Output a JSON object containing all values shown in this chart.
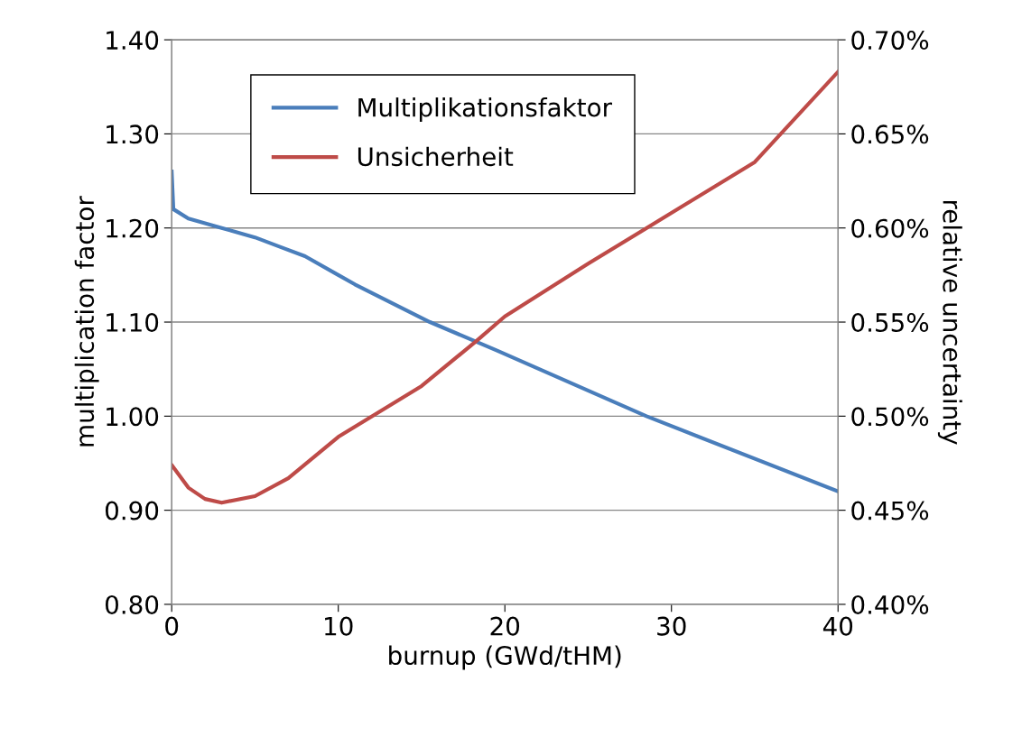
{
  "chart_data": {
    "type": "line",
    "xlabel": "burnup (GWd/tHM)",
    "ylabel": "multiplication factor",
    "y2label": "relative uncertainty",
    "xlim": [
      0,
      40
    ],
    "xticks": [
      0,
      10,
      20,
      30,
      40
    ],
    "ylim": [
      0.8,
      1.4
    ],
    "yticks": [
      {
        "value": 0.8,
        "label": "0.80"
      },
      {
        "value": 0.9,
        "label": "0.90"
      },
      {
        "value": 1.0,
        "label": "1.00"
      },
      {
        "value": 1.1,
        "label": "1.10"
      },
      {
        "value": 1.2,
        "label": "1.20"
      },
      {
        "value": 1.3,
        "label": "1.30"
      },
      {
        "value": 1.4,
        "label": "1.40"
      }
    ],
    "y2lim": [
      0.4,
      0.7
    ],
    "y2ticks": [
      {
        "value": 0.4,
        "label": "0.40%"
      },
      {
        "value": 0.45,
        "label": "0.45%"
      },
      {
        "value": 0.5,
        "label": "0.50%"
      },
      {
        "value": 0.55,
        "label": "0.55%"
      },
      {
        "value": 0.6,
        "label": "0.60%"
      },
      {
        "value": 0.65,
        "label": "0.65%"
      },
      {
        "value": 0.7,
        "label": "0.70%"
      }
    ],
    "grid": "y",
    "legend": "top left",
    "marker": "none",
    "line_style": "solid",
    "series": [
      {
        "name": "Multiplikationsfaktor",
        "color": "#4a7ebb",
        "x": [
          0,
          0.1,
          1,
          3,
          5,
          6.5,
          8,
          10,
          11,
          15.5,
          19.5,
          28.5,
          40
        ],
        "values": [
          1.26,
          1.22,
          1.21,
          1.2,
          1.19,
          1.18,
          1.17,
          1.15,
          1.14,
          1.1,
          1.07,
          1.0,
          0.92
        ]
      },
      {
        "name": "Unsicherheit",
        "color": "#be4b48",
        "axis": "y2",
        "x": [
          0,
          1,
          2,
          3,
          5,
          7,
          10,
          15,
          18.3,
          20,
          25,
          30,
          35,
          40
        ],
        "values": [
          0.474,
          0.462,
          0.456,
          0.454,
          0.4575,
          0.467,
          0.489,
          0.516,
          0.54,
          0.553,
          0.581,
          0.608,
          0.635,
          0.683
        ]
      }
    ]
  }
}
